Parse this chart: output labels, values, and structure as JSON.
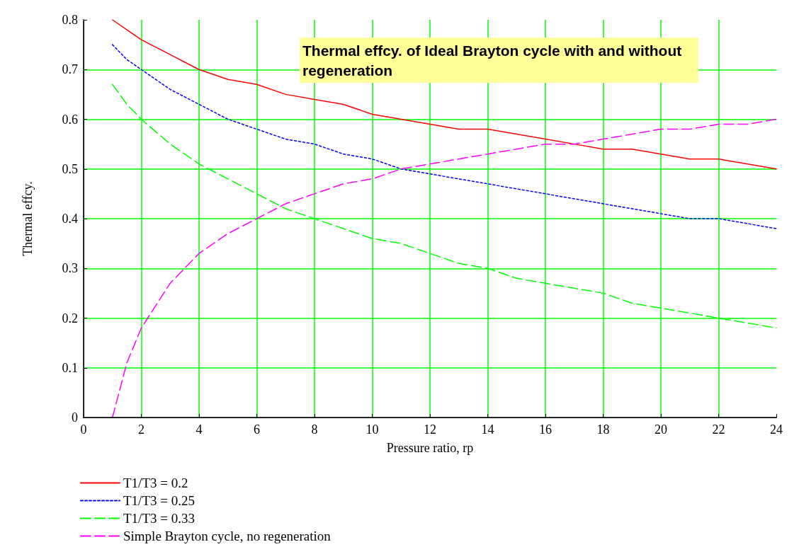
{
  "chart_data": {
    "type": "line",
    "title": "Thermal effcy. of Ideal Brayton cycle with and without regeneration",
    "xlabel": "Pressure ratio, rp",
    "ylabel": "Thermal effcy.",
    "x": [
      1,
      1.5,
      2,
      3,
      4,
      5,
      6,
      7,
      8,
      9,
      10,
      11,
      12,
      13,
      14,
      15,
      16,
      17,
      18,
      19,
      20,
      21,
      22,
      23,
      24
    ],
    "series": [
      {
        "name": "T1/T3 = 0.2",
        "color": "#ff0000",
        "line_style": "solid",
        "values": [
          0.8,
          0.78,
          0.76,
          0.73,
          0.7,
          0.68,
          0.67,
          0.65,
          0.64,
          0.63,
          0.61,
          0.6,
          0.59,
          0.58,
          0.58,
          0.57,
          0.56,
          0.55,
          0.54,
          0.54,
          0.53,
          0.52,
          0.52,
          0.51,
          0.5
        ]
      },
      {
        "name": "T1/T3 = 0.25",
        "color": "#0000ff",
        "line_style": "dotted",
        "values": [
          0.75,
          0.72,
          0.7,
          0.66,
          0.63,
          0.6,
          0.58,
          0.56,
          0.55,
          0.53,
          0.52,
          0.5,
          0.49,
          0.48,
          0.47,
          0.46,
          0.45,
          0.44,
          0.43,
          0.42,
          0.41,
          0.4,
          0.4,
          0.39,
          0.38
        ]
      },
      {
        "name": "T1/T3 = 0.33",
        "color": "#00ff00",
        "line_style": "dashed",
        "values": [
          0.67,
          0.63,
          0.6,
          0.55,
          0.51,
          0.48,
          0.45,
          0.42,
          0.4,
          0.38,
          0.36,
          0.35,
          0.33,
          0.31,
          0.3,
          0.28,
          0.27,
          0.26,
          0.25,
          0.23,
          0.22,
          0.21,
          0.2,
          0.19,
          0.18
        ]
      },
      {
        "name": "Simple Brayton cycle, no regeneration",
        "color": "#ff00ff",
        "line_style": "dashed",
        "values": [
          0,
          0.11,
          0.18,
          0.27,
          0.33,
          0.37,
          0.4,
          0.43,
          0.45,
          0.47,
          0.48,
          0.5,
          0.51,
          0.52,
          0.53,
          0.54,
          0.55,
          0.55,
          0.56,
          0.57,
          0.58,
          0.58,
          0.59,
          0.59,
          0.6
        ]
      }
    ],
    "xlim": [
      0,
      24
    ],
    "xticks": [
      0,
      2,
      4,
      6,
      8,
      10,
      12,
      14,
      16,
      18,
      20,
      22,
      24
    ],
    "ylim": [
      0,
      0.8
    ],
    "yticks": [
      0,
      0.1,
      0.2,
      0.3,
      0.4,
      0.5,
      0.6,
      0.7,
      0.8
    ],
    "grid": true,
    "legend": "bottom left",
    "marker": "none"
  }
}
